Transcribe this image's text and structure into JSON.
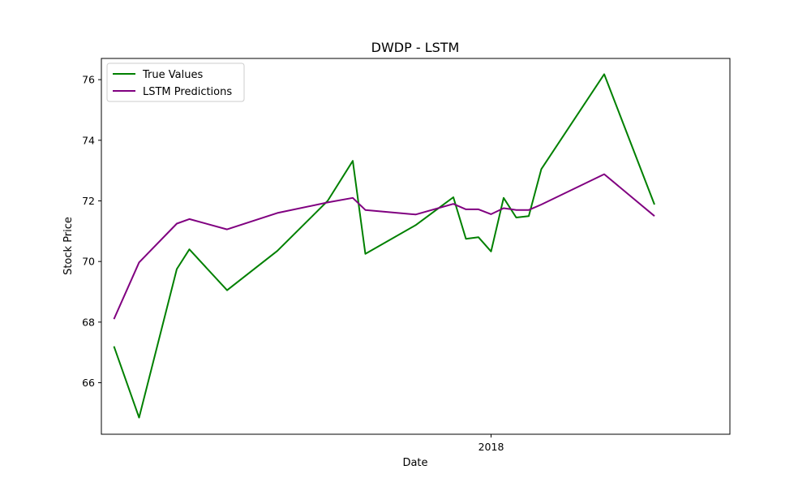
{
  "chart_data": {
    "type": "line",
    "title": "DWDP - LSTM",
    "xlabel": "Date",
    "ylabel": "Stock Price",
    "grid": false,
    "legend_position": "top-left",
    "xlim": [
      "2017-12-01",
      "2018-01-20"
    ],
    "ylim": [
      64.3,
      76.7
    ],
    "x_ticks": [
      {
        "value": "2018-01-01",
        "label": "2018"
      }
    ],
    "y_ticks": [
      66,
      68,
      70,
      72,
      74,
      76
    ],
    "series": [
      {
        "name": "True Values",
        "color": "#008000",
        "points": [
          [
            "2017-12-02",
            67.2
          ],
          [
            "2017-12-04",
            64.85
          ],
          [
            "2017-12-07",
            69.75
          ],
          [
            "2017-12-08",
            70.4
          ],
          [
            "2017-12-11",
            69.05
          ],
          [
            "2017-12-15",
            70.35
          ],
          [
            "2017-12-19",
            72.0
          ],
          [
            "2017-12-21",
            73.32
          ],
          [
            "2017-12-22",
            70.25
          ],
          [
            "2017-12-26",
            71.2
          ],
          [
            "2017-12-29",
            72.12
          ],
          [
            "2017-12-30",
            70.75
          ],
          [
            "2017-12-31",
            70.8
          ],
          [
            "2018-01-01",
            70.33
          ],
          [
            "2018-01-02",
            72.1
          ],
          [
            "2018-01-03",
            71.45
          ],
          [
            "2018-01-04",
            71.5
          ],
          [
            "2018-01-05",
            73.05
          ],
          [
            "2018-01-10",
            76.18
          ],
          [
            "2018-01-14",
            71.88
          ]
        ]
      },
      {
        "name": "LSTM Predictions",
        "color": "#800080",
        "points": [
          [
            "2017-12-02",
            68.1
          ],
          [
            "2017-12-04",
            69.97
          ],
          [
            "2017-12-07",
            71.25
          ],
          [
            "2017-12-08",
            71.4
          ],
          [
            "2017-12-11",
            71.06
          ],
          [
            "2017-12-15",
            71.6
          ],
          [
            "2017-12-19",
            71.95
          ],
          [
            "2017-12-21",
            72.1
          ],
          [
            "2017-12-22",
            71.7
          ],
          [
            "2017-12-26",
            71.55
          ],
          [
            "2017-12-29",
            71.9
          ],
          [
            "2017-12-30",
            71.72
          ],
          [
            "2017-12-31",
            71.72
          ],
          [
            "2018-01-01",
            71.56
          ],
          [
            "2018-01-02",
            71.76
          ],
          [
            "2018-01-03",
            71.7
          ],
          [
            "2018-01-04",
            71.7
          ],
          [
            "2018-01-05",
            71.88
          ],
          [
            "2018-01-10",
            72.88
          ],
          [
            "2018-01-14",
            71.5
          ]
        ]
      }
    ]
  }
}
